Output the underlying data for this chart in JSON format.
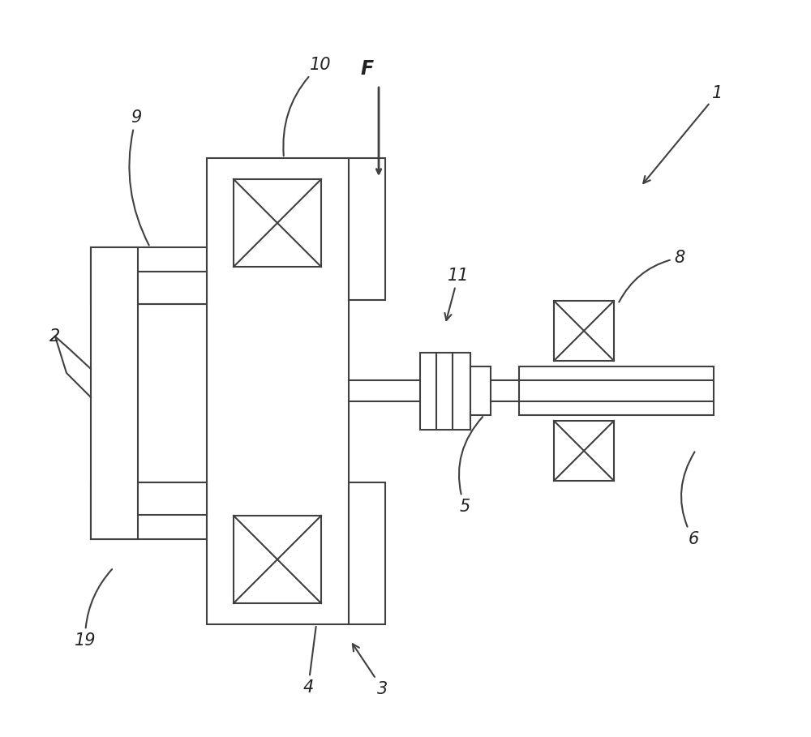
{
  "bg_color": "#ffffff",
  "line_color": "#404040",
  "lw": 1.5,
  "fig_width": 10.0,
  "fig_height": 9.09
}
